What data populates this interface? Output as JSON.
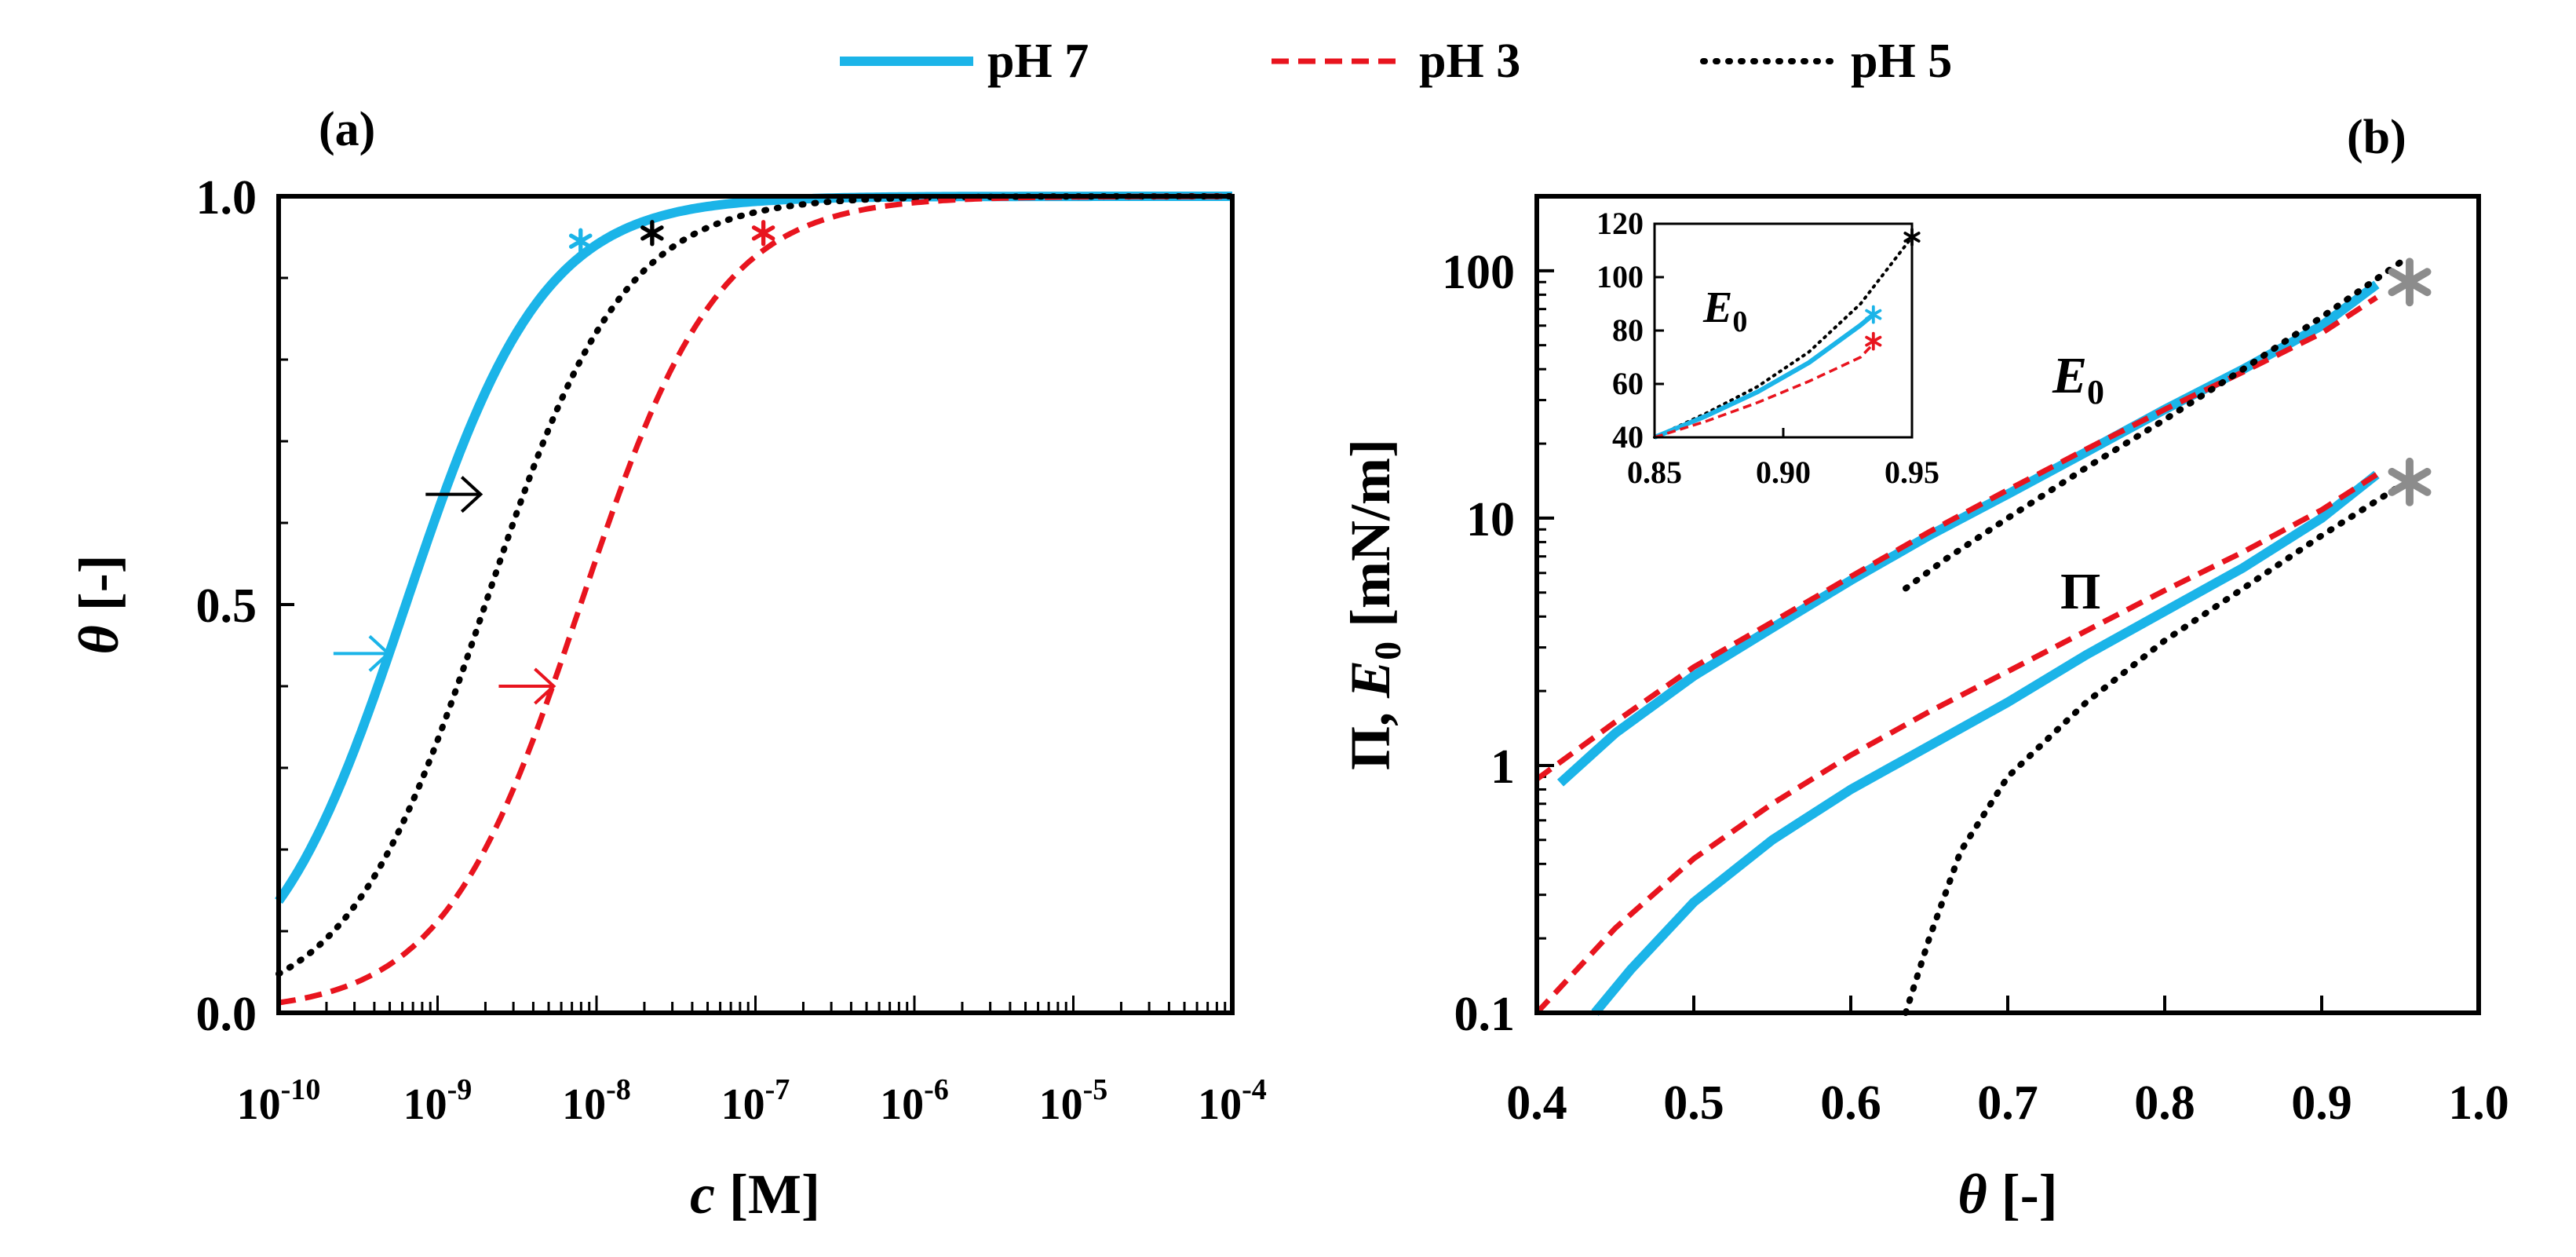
{
  "legend": [
    {
      "name": "pH 7",
      "color": "#1bb4e8",
      "style": "solid"
    },
    {
      "name": "pH 3",
      "color": "#e8141e",
      "style": "dashed"
    },
    {
      "name": "pH 5",
      "color": "#000000",
      "style": "dotted"
    }
  ],
  "panel_labels": {
    "a": "(a)",
    "b": "(b)"
  },
  "curve_labels": {
    "E0": "E",
    "E0_sub": "0",
    "Pi": "Π",
    "inset_E0": "E",
    "inset_E0_sub": "0"
  },
  "axes": {
    "a_ylabel_main": "θ",
    "a_ylabel_unit": " [-]",
    "a_xlabel_main": "c",
    "a_xlabel_unit": " [M]",
    "b_xlabel_main": "θ",
    "b_xlabel_unit": " [-]",
    "b_ylabel_p1": "Π, ",
    "b_ylabel_E": "E",
    "b_ylabel_sub": "0",
    "b_ylabel_unit": " [mN/m]"
  },
  "chart_data": [
    {
      "id": "a",
      "type": "line",
      "title": "(a)",
      "xlabel": "c [M]",
      "ylabel": "θ [-]",
      "xscale": "log",
      "xlim": [
        1e-10,
        0.0001
      ],
      "ylim": [
        0,
        1
      ],
      "xticks": [
        -10,
        -9,
        -8,
        -7,
        -6,
        -5,
        -4
      ],
      "xtick_labels": [
        "10^-10",
        "10^-9",
        "10^-8",
        "10^-7",
        "10^-6",
        "10^-5",
        "10^-4"
      ],
      "yticks": [
        0,
        0.5,
        1
      ],
      "ytick_labels": [
        "0.0",
        "0.5",
        "1.0"
      ],
      "series": [
        {
          "name": "pH 7",
          "model": "langmuir",
          "log10_half": -9.2,
          "slope": 1.0,
          "x_log10_range": [
            -10,
            -4
          ]
        },
        {
          "name": "pH 5",
          "model": "langmuir",
          "log10_half": -8.7,
          "slope": 1.0,
          "x_log10_range": [
            -10,
            -4
          ]
        },
        {
          "name": "pH 3",
          "model": "langmuir",
          "log10_half": -8.1,
          "slope": 1.0,
          "x_log10_range": [
            -10,
            -4
          ]
        }
      ],
      "arrows": [
        {
          "series": "pH 7",
          "x_log10": -9.26,
          "y": 0.44
        },
        {
          "series": "pH 5",
          "x_log10": -8.68,
          "y": 0.635
        },
        {
          "series": "pH 3",
          "x_log10": -8.22,
          "y": 0.4
        }
      ],
      "stars": [
        {
          "series": "pH 7",
          "x_log10": -8.1,
          "y": 0.945
        },
        {
          "series": "pH 5",
          "x_log10": -7.65,
          "y": 0.955
        },
        {
          "series": "pH 3",
          "x_log10": -6.95,
          "y": 0.955
        }
      ]
    },
    {
      "id": "b",
      "type": "line",
      "title": "(b)",
      "xlabel": "θ [-]",
      "ylabel": "Π, E0 [mN/m]",
      "yscale": "log",
      "xlim": [
        0.4,
        1.0
      ],
      "ylim": [
        0.1,
        200
      ],
      "xticks": [
        0.4,
        0.5,
        0.6,
        0.7,
        0.8,
        0.9,
        1.0
      ],
      "xtick_labels": [
        "0.4",
        "0.5",
        "0.6",
        "0.7",
        "0.8",
        "0.9",
        "1.0"
      ],
      "yticks": [
        0.1,
        1,
        10,
        100
      ],
      "ytick_labels": [
        "0.1",
        "1",
        "10",
        "100"
      ],
      "series": [
        {
          "name": "pH 7",
          "curve": "E0",
          "x": [
            0.415,
            0.45,
            0.5,
            0.55,
            0.6,
            0.65,
            0.7,
            0.75,
            0.8,
            0.85,
            0.9,
            0.935
          ],
          "y": [
            0.85,
            1.35,
            2.3,
            3.6,
            5.6,
            8.5,
            12.5,
            18.5,
            27.5,
            40,
            60,
            88
          ]
        },
        {
          "name": "pH 3",
          "curve": "E0",
          "x": [
            0.4,
            0.45,
            0.5,
            0.55,
            0.6,
            0.65,
            0.7,
            0.75,
            0.8,
            0.85,
            0.9,
            0.935
          ],
          "y": [
            0.88,
            1.5,
            2.5,
            3.8,
            5.8,
            8.8,
            13,
            19,
            27.5,
            39,
            56,
            78
          ]
        },
        {
          "name": "pH 5",
          "curve": "E0",
          "x": [
            0.635,
            0.66,
            0.7,
            0.75,
            0.8,
            0.85,
            0.9,
            0.95
          ],
          "y": [
            5.2,
            6.8,
            10,
            16,
            25,
            40,
            65,
            108
          ]
        },
        {
          "name": "pH 7",
          "curve": "Pi",
          "x": [
            0.437,
            0.46,
            0.5,
            0.55,
            0.6,
            0.65,
            0.7,
            0.75,
            0.8,
            0.85,
            0.9,
            0.935
          ],
          "y": [
            0.1,
            0.15,
            0.28,
            0.5,
            0.8,
            1.2,
            1.8,
            2.8,
            4.2,
            6.3,
            10,
            15
          ]
        },
        {
          "name": "pH 3",
          "curve": "Pi",
          "x": [
            0.4,
            0.45,
            0.5,
            0.55,
            0.6,
            0.65,
            0.7,
            0.75,
            0.8,
            0.85,
            0.9,
            0.935
          ],
          "y": [
            0.1,
            0.22,
            0.42,
            0.7,
            1.1,
            1.65,
            2.4,
            3.5,
            5.1,
            7.3,
            10.8,
            15
          ]
        },
        {
          "name": "pH 5",
          "curve": "Pi",
          "x": [
            0.635,
            0.65,
            0.67,
            0.7,
            0.75,
            0.8,
            0.85,
            0.9,
            0.95
          ],
          "y": [
            0.1,
            0.2,
            0.45,
            0.9,
            1.8,
            3.2,
            5.2,
            8.5,
            13.5
          ]
        }
      ],
      "stars": [
        {
          "label": "E0",
          "x": 0.952,
          "y": 90
        },
        {
          "label": "Pi",
          "x": 0.952,
          "y": 14
        }
      ],
      "inset": {
        "type": "line",
        "xlim": [
          0.85,
          0.95
        ],
        "ylim": [
          40,
          120
        ],
        "xticks": [
          0.85,
          0.9,
          0.95
        ],
        "xtick_labels": [
          "0.85",
          "0.90",
          "0.95"
        ],
        "yticks": [
          40,
          60,
          80,
          100,
          120
        ],
        "ytick_labels": [
          "40",
          "60",
          "80",
          "100",
          "120"
        ],
        "series": [
          {
            "name": "pH 5",
            "x": [
              0.85,
              0.87,
              0.89,
              0.91,
              0.93,
              0.95
            ],
            "y": [
              40,
              49,
              59,
              72,
              90,
              115
            ]
          },
          {
            "name": "pH 7",
            "x": [
              0.85,
              0.87,
              0.89,
              0.91,
              0.93,
              0.935
            ],
            "y": [
              40,
              48,
              57,
              68,
              82,
              86
            ]
          },
          {
            "name": "pH 3",
            "x": [
              0.85,
              0.87,
              0.89,
              0.91,
              0.93,
              0.935
            ],
            "y": [
              40,
              46,
              53,
              61,
              70,
              75
            ]
          }
        ],
        "stars": [
          {
            "series": "pH 5",
            "x": 0.95,
            "y": 115
          },
          {
            "series": "pH 7",
            "x": 0.935,
            "y": 86
          },
          {
            "series": "pH 3",
            "x": 0.935,
            "y": 76
          }
        ]
      }
    }
  ]
}
